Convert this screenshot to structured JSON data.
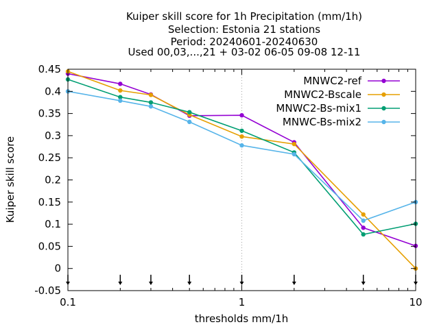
{
  "chart_data": {
    "type": "line",
    "title": [
      "Kuiper skill score  for 1h Precipitation (mm/1h)",
      "Selection: Estonia     21 stations",
      "Period: 20240601-20240630",
      "Used 00,03,...,21 + 03-02 06-05 09-08 12-11"
    ],
    "xlabel": "thresholds mm/1h",
    "ylabel": "Kuiper skill score",
    "x_scale": "log",
    "xlim": [
      0.1,
      10
    ],
    "ylim": [
      -0.05,
      0.45
    ],
    "x_ticks": [
      {
        "value": 0.1,
        "label": "0.1"
      },
      {
        "value": 1,
        "label": "1"
      },
      {
        "value": 10,
        "label": "10"
      }
    ],
    "y_ticks": [
      {
        "value": 0.45,
        "label": "0.45"
      },
      {
        "value": 0.4,
        "label": "0.4"
      },
      {
        "value": 0.35,
        "label": "0.35"
      },
      {
        "value": 0.3,
        "label": "0.3"
      },
      {
        "value": 0.25,
        "label": "0.25"
      },
      {
        "value": 0.2,
        "label": "0.2"
      },
      {
        "value": 0.15,
        "label": "0.15"
      },
      {
        "value": 0.1,
        "label": "0.1"
      },
      {
        "value": 0.05,
        "label": "0.05"
      },
      {
        "value": 0,
        "label": "0"
      },
      {
        "value": -0.05,
        "label": "-0.05"
      }
    ],
    "grid": "vertical dotted at 1 and 10",
    "threshold_markers": [
      0.1,
      0.2,
      0.3,
      0.5,
      1,
      2,
      5,
      10
    ],
    "legend_position": "top-right",
    "x": [
      0.1,
      0.2,
      0.3,
      0.5,
      1,
      2,
      5,
      10
    ],
    "series": [
      {
        "name": "MNWC2-ref",
        "color": "#9400d3",
        "values": [
          0.44,
          0.417,
          0.393,
          0.345,
          0.346,
          0.285,
          0.092,
          0.051
        ]
      },
      {
        "name": "MNWC2-Bscale",
        "color": "#e69f00",
        "values": [
          0.445,
          0.402,
          0.392,
          0.347,
          0.298,
          0.281,
          0.122,
          0.0
        ]
      },
      {
        "name": "MNWC2-Bs-mix1",
        "color": "#009e73",
        "values": [
          0.427,
          0.387,
          0.375,
          0.353,
          0.311,
          0.262,
          0.077,
          0.101
        ]
      },
      {
        "name": "MNWC-Bs-mix2",
        "color": "#56b4e9",
        "values": [
          0.4,
          0.379,
          0.366,
          0.331,
          0.278,
          0.258,
          0.108,
          0.15
        ]
      }
    ]
  }
}
